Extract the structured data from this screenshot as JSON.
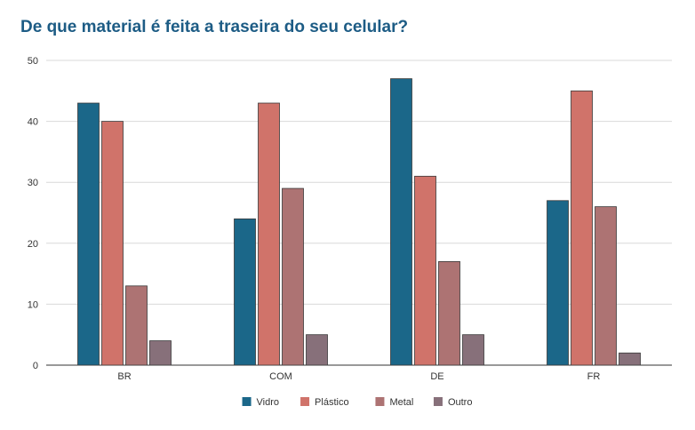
{
  "chart_data": {
    "type": "bar",
    "title": "De que material é feita a traseira do seu celular?",
    "xlabel": "",
    "ylabel": "",
    "categories": [
      "BR",
      "COM",
      "DE",
      "FR"
    ],
    "series": [
      {
        "name": "Vidro",
        "color": "#1b6789",
        "values": [
          43,
          24,
          47,
          27
        ]
      },
      {
        "name": "Plástico",
        "color": "#d0736a",
        "values": [
          40,
          43,
          31,
          45
        ]
      },
      {
        "name": "Metal",
        "color": "#ad7373",
        "values": [
          13,
          29,
          17,
          26
        ]
      },
      {
        "name": "Outro",
        "color": "#87707a",
        "values": [
          4,
          5,
          5,
          2
        ]
      }
    ],
    "ylim": [
      0,
      50
    ],
    "yticks": [
      0,
      10,
      20,
      30,
      40,
      50
    ],
    "grid": true,
    "legend": "bottom"
  }
}
